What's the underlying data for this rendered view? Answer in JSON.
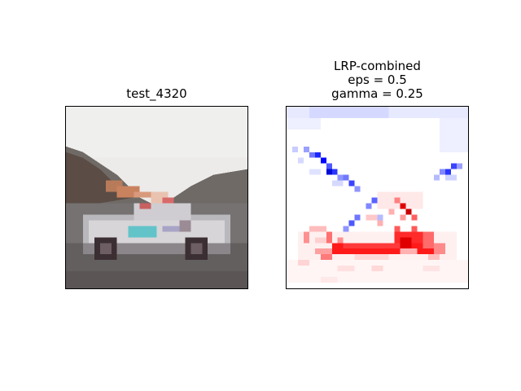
{
  "left_panel": {
    "title": "test_4320"
  },
  "right_panel": {
    "title_lines": [
      "LRP-combined",
      "eps = 0.5",
      "gamma = 0.25"
    ]
  },
  "colors": {
    "positive": "#ff0000",
    "negative": "#0000ff",
    "neutral": "#ffffff"
  }
}
